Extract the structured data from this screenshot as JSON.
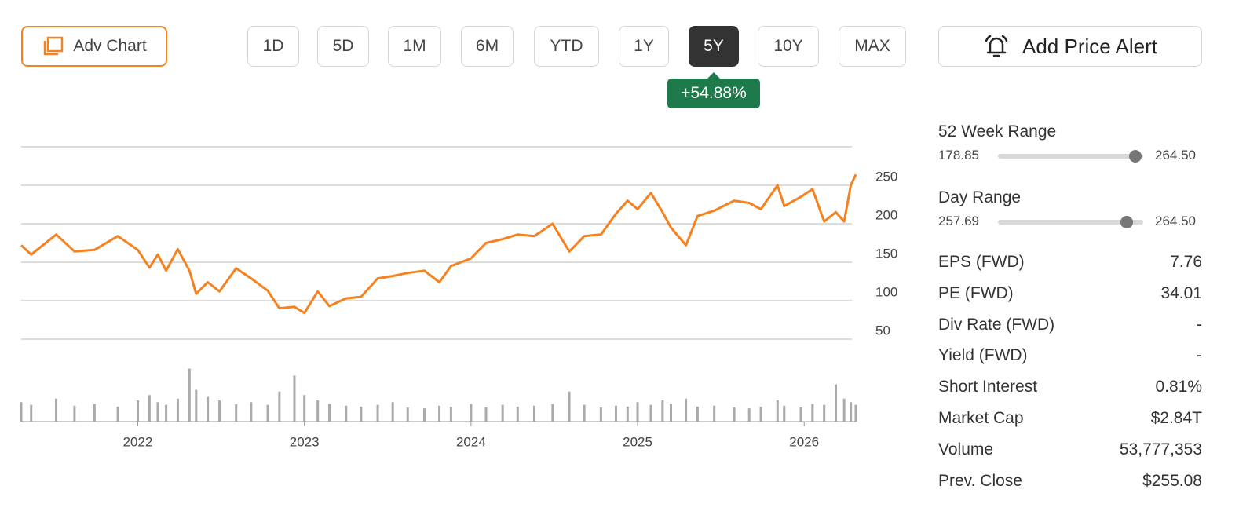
{
  "toolbar": {
    "adv_chart": "Adv Chart",
    "periods": [
      "1D",
      "5D",
      "1M",
      "6M",
      "YTD",
      "1Y",
      "5Y",
      "10Y",
      "MAX"
    ],
    "active_period": "5Y",
    "change": "+54.88%",
    "alert": "Add Price Alert"
  },
  "chart_data": {
    "type": "line",
    "color": "#f5821f",
    "x": [
      2021.3,
      2021.36,
      2021.51,
      2021.62,
      2021.74,
      2021.88,
      2022.0,
      2022.07,
      2022.12,
      2022.17,
      2022.24,
      2022.31,
      2022.35,
      2022.42,
      2022.49,
      2022.59,
      2022.68,
      2022.78,
      2022.85,
      2022.94,
      2023.0,
      2023.08,
      2023.15,
      2023.25,
      2023.34,
      2023.44,
      2023.53,
      2023.62,
      2023.72,
      2023.81,
      2023.88,
      2024.0,
      2024.09,
      2024.19,
      2024.28,
      2024.38,
      2024.49,
      2024.59,
      2024.68,
      2024.78,
      2024.87,
      2024.94,
      2025.0,
      2025.08,
      2025.15,
      2025.2,
      2025.29,
      2025.36,
      2025.46,
      2025.58,
      2025.67,
      2025.74,
      2025.84,
      2025.88,
      2025.98,
      2026.05,
      2026.12,
      2026.19,
      2026.24,
      2026.28,
      2026.31
    ],
    "values": [
      172,
      160,
      186,
      164,
      166,
      184,
      166,
      143,
      160,
      139,
      167,
      139,
      109,
      124,
      112,
      142,
      129,
      113,
      90,
      92,
      84,
      112,
      93,
      103,
      105,
      129,
      132,
      136,
      139,
      124,
      145,
      155,
      175,
      180,
      186,
      184,
      200,
      164,
      184,
      186,
      213,
      230,
      219,
      240,
      215,
      195,
      172,
      210,
      217,
      230,
      227,
      219,
      250,
      223,
      235,
      245,
      203,
      215,
      203,
      250,
      264
    ],
    "volume": {
      "color": "#aaaaaa",
      "values": [
        110,
        95,
        130,
        90,
        100,
        85,
        120,
        150,
        110,
        95,
        130,
        300,
        180,
        140,
        120,
        100,
        110,
        95,
        170,
        260,
        150,
        120,
        100,
        90,
        85,
        95,
        110,
        80,
        75,
        90,
        85,
        100,
        80,
        95,
        85,
        90,
        100,
        170,
        95,
        80,
        90,
        85,
        110,
        95,
        120,
        100,
        130,
        85,
        90,
        80,
        75,
        85,
        120,
        90,
        80,
        100,
        95,
        210,
        130,
        110,
        95
      ]
    },
    "xlim": [
      2021.3,
      2026.31
    ],
    "xticks": [
      2022,
      2023,
      2024,
      2025,
      2026
    ],
    "ylim": [
      50,
      300
    ],
    "yticks": [
      50,
      100,
      150,
      200,
      250
    ],
    "y2lim": [
      0,
      400
    ],
    "grid": true
  },
  "stats": {
    "week52": {
      "label": "52 Week Range",
      "low": "178.85",
      "high": "264.50"
    },
    "day": {
      "label": "Day Range",
      "low": "257.69",
      "high": "264.50"
    },
    "rows": [
      [
        "EPS (FWD)",
        "7.76"
      ],
      [
        "PE (FWD)",
        "34.01"
      ],
      [
        "Div Rate (FWD)",
        "-"
      ],
      [
        "Yield (FWD)",
        "-"
      ],
      [
        "Short Interest",
        "0.81%"
      ],
      [
        "Market Cap",
        "$2.84T"
      ],
      [
        "Volume",
        "53,777,353"
      ],
      [
        "Prev. Close",
        "$255.08"
      ]
    ]
  }
}
